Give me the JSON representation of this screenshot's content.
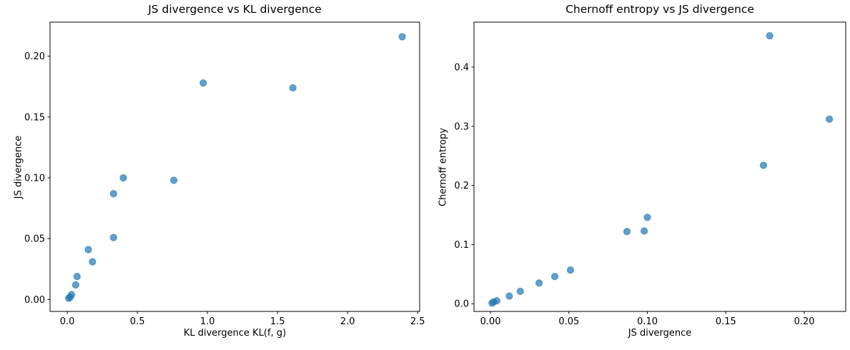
{
  "figure": {
    "background": "#ffffff",
    "marker_color": "#1f77b4",
    "marker_alpha": 0.7,
    "axis_color": "#000000",
    "text_color": "#000000"
  },
  "chart_data": [
    {
      "id": "js-vs-kl",
      "type": "scatter",
      "title": "JS divergence vs KL divergence",
      "xlabel": "KL divergence KL(f, g)",
      "ylabel": "JS divergence",
      "x": [
        0.01,
        0.02,
        0.03,
        0.06,
        0.07,
        0.15,
        0.18,
        0.33,
        0.33,
        0.4,
        0.76,
        0.97,
        1.61,
        2.39
      ],
      "y": [
        0.001,
        0.002,
        0.004,
        0.012,
        0.019,
        0.041,
        0.031,
        0.051,
        0.087,
        0.1,
        0.098,
        0.178,
        0.174,
        0.216
      ],
      "xlim": [
        -0.123,
        2.514
      ],
      "ylim": [
        -0.0098,
        0.228
      ],
      "xticks": [
        0.0,
        0.5,
        1.0,
        1.5,
        2.0,
        2.5
      ],
      "xtick_labels": [
        "0.0",
        "0.5",
        "1.0",
        "1.5",
        "2.0",
        "2.5"
      ],
      "yticks": [
        0.0,
        0.05,
        0.1,
        0.15,
        0.2
      ],
      "ytick_labels": [
        "0.00",
        "0.05",
        "0.10",
        "0.15",
        "0.20"
      ],
      "grid": false,
      "legend": null
    },
    {
      "id": "chernoff-vs-js",
      "type": "scatter",
      "title": "Chernoff entropy vs JS divergence",
      "xlabel": "JS divergence",
      "ylabel": "Chernoff entropy",
      "x": [
        0.001,
        0.002,
        0.004,
        0.012,
        0.019,
        0.031,
        0.041,
        0.051,
        0.087,
        0.098,
        0.1,
        0.174,
        0.178,
        0.216
      ],
      "y": [
        0.001,
        0.003,
        0.005,
        0.013,
        0.021,
        0.035,
        0.046,
        0.057,
        0.122,
        0.123,
        0.146,
        0.234,
        0.453,
        0.312
      ],
      "xlim": [
        -0.0105,
        0.2264
      ],
      "ylim": [
        -0.013,
        0.476
      ],
      "xticks": [
        0.0,
        0.05,
        0.1,
        0.15,
        0.2
      ],
      "xtick_labels": [
        "0.00",
        "0.05",
        "0.10",
        "0.15",
        "0.20"
      ],
      "yticks": [
        0.0,
        0.1,
        0.2,
        0.3,
        0.4
      ],
      "ytick_labels": [
        "0.0",
        "0.1",
        "0.2",
        "0.3",
        "0.4"
      ],
      "grid": false,
      "legend": null
    }
  ]
}
